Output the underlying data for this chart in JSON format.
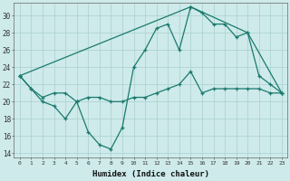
{
  "title": "",
  "xlabel": "Humidex (Indice chaleur)",
  "ylabel": "",
  "bg_color": "#ceeaea",
  "grid_color": "#aacfcf",
  "line_color": "#1a7a6e",
  "x_ticks": [
    0,
    1,
    2,
    3,
    4,
    5,
    6,
    7,
    8,
    9,
    10,
    11,
    12,
    13,
    14,
    15,
    16,
    17,
    18,
    19,
    20,
    21,
    22,
    23
  ],
  "y_ticks": [
    14,
    16,
    18,
    20,
    22,
    24,
    26,
    28,
    30
  ],
  "xlim": [
    -0.5,
    23.5
  ],
  "ylim": [
    13.5,
    31.5
  ],
  "series1_x": [
    0,
    1,
    2,
    3,
    4,
    5,
    6,
    7,
    8,
    9,
    10,
    11,
    12,
    13,
    14,
    15,
    16,
    17,
    18,
    19,
    20,
    21,
    22,
    23
  ],
  "series1_y": [
    23.0,
    21.5,
    20.0,
    19.5,
    18.0,
    20.0,
    16.5,
    15.0,
    14.5,
    17.0,
    24.0,
    26.0,
    28.5,
    29.0,
    26.0,
    31.0,
    30.3,
    29.0,
    29.0,
    27.5,
    28.0,
    23.0,
    22.0,
    21.0
  ],
  "series2_x": [
    0,
    1,
    2,
    3,
    4,
    5,
    6,
    7,
    8,
    9,
    10,
    11,
    12,
    13,
    14,
    15,
    16,
    17,
    18,
    19,
    20,
    21,
    22,
    23
  ],
  "series2_y": [
    23.0,
    21.5,
    20.5,
    21.0,
    21.0,
    20.0,
    20.5,
    20.5,
    20.0,
    20.0,
    20.5,
    20.5,
    21.0,
    21.5,
    22.0,
    23.5,
    21.0,
    21.5,
    21.5,
    21.5,
    21.5,
    21.5,
    21.0,
    21.0
  ],
  "series3_x": [
    0,
    15,
    20,
    23
  ],
  "series3_y": [
    23.0,
    31.0,
    28.0,
    21.0
  ]
}
